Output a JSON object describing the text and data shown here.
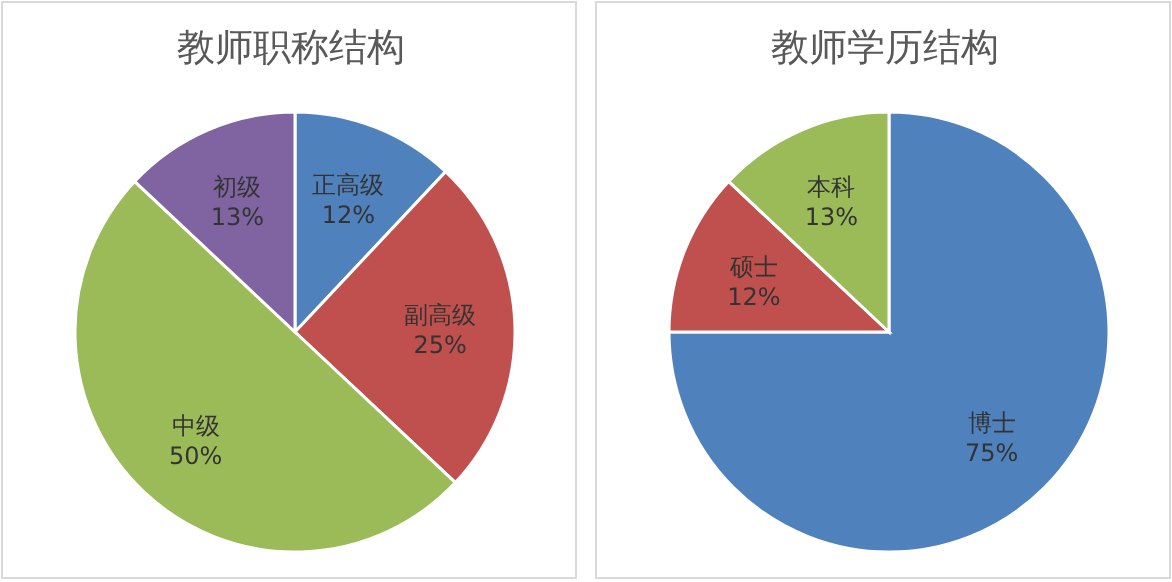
{
  "chart_data": [
    {
      "type": "pie",
      "title": "教师职称结构",
      "categories": [
        "正高级",
        "副高级",
        "中级",
        "初级"
      ],
      "values": [
        12,
        25,
        50,
        13
      ],
      "value_labels": [
        "12%",
        "25%",
        "50%",
        "13%"
      ],
      "colors": [
        "#4f81bd",
        "#c0504d",
        "#9bbb59",
        "#8064a2"
      ],
      "legend": false
    },
    {
      "type": "pie",
      "title": "教师学历结构",
      "categories": [
        "博士",
        "硕士",
        "本科"
      ],
      "values": [
        75,
        12,
        13
      ],
      "value_labels": [
        "75%",
        "12%",
        "13%"
      ],
      "colors": [
        "#4f81bd",
        "#c0504d",
        "#9bbb59"
      ],
      "legend": false
    }
  ]
}
